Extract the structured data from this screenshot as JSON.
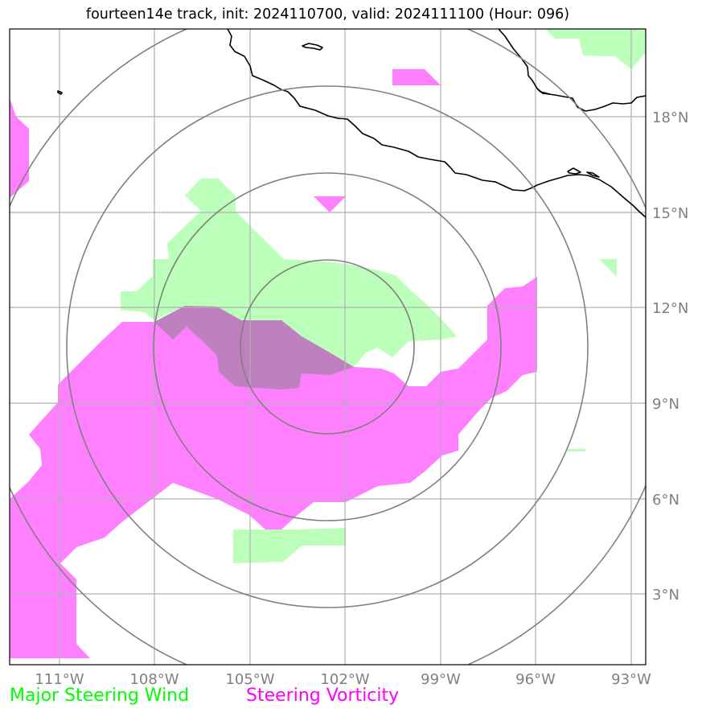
{
  "title": "fourteen14e track, init: 2024110700, valid: 2024111100 (Hour: 096)",
  "lon_ticks": [
    "111°W",
    "108°W",
    "105°W",
    "102°W",
    "99°W",
    "96°W",
    "93°W"
  ],
  "lat_ticks": [
    "18°N",
    "15°N",
    "12°N",
    "9°N",
    "6°N",
    "3°N"
  ],
  "legend": {
    "wind": "Major Steering Wind",
    "vorticity": "Steering Vorticity"
  },
  "colors": {
    "wind": "#bbffbb",
    "vorticity": "#ff80ff",
    "overlap": "#bf80bf",
    "wind_legend": "#00ff00",
    "vorticity_legend": "#ff00ff",
    "rings": "#808080",
    "grid": "#b0b0b0",
    "coast": "#000000"
  }
}
